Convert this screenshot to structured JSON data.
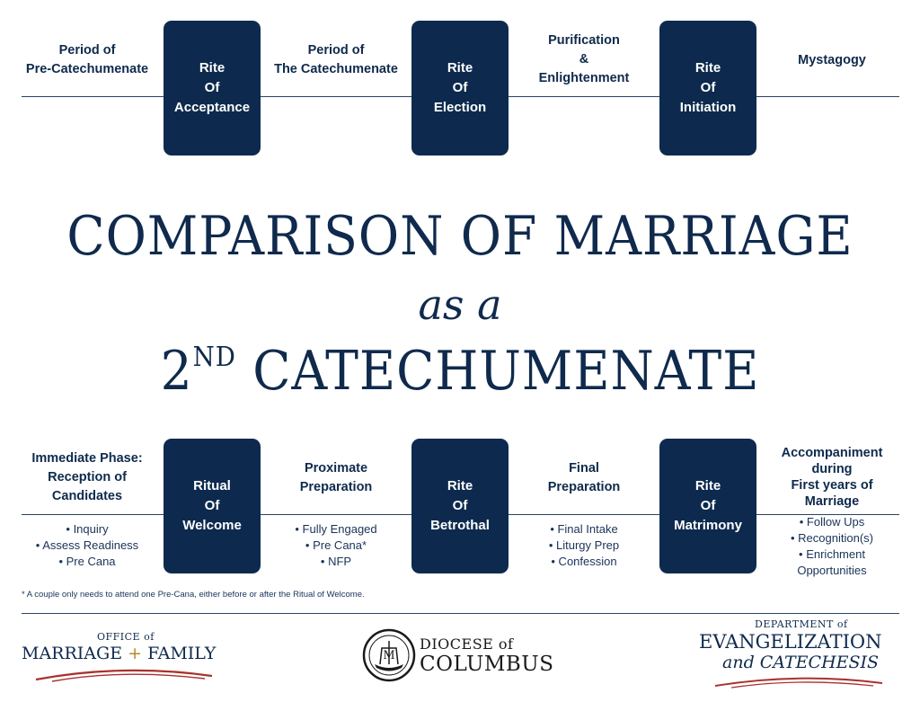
{
  "top_timeline": {
    "labels": [
      [
        "Period of",
        "Pre-Catechumenate"
      ],
      [
        "Period of",
        "The Catechumenate"
      ],
      [
        "Purification",
        "&",
        "Enlightenment"
      ],
      [
        "Mystagogy"
      ]
    ],
    "rites": [
      [
        "Rite",
        "Of",
        "Acceptance"
      ],
      [
        "Rite",
        "Of",
        "Election"
      ],
      [
        "Rite",
        "Of",
        "Initiation"
      ]
    ]
  },
  "title": {
    "line1": "COMPARISON OF MARRIAGE",
    "line2": "as a",
    "line3_num": "2",
    "line3_sup": "ND",
    "line3_rest": " CATECHUMENATE"
  },
  "bottom_timeline": {
    "labels": [
      [
        "Immediate Phase:",
        "Reception of",
        "Candidates"
      ],
      [
        "Proximate",
        "Preparation"
      ],
      [
        "Final",
        "Preparation"
      ],
      [
        "Accompaniment",
        "during",
        "First years of",
        "Marriage"
      ]
    ],
    "rites": [
      [
        "Ritual",
        "Of",
        "Welcome"
      ],
      [
        "Rite",
        "Of",
        "Betrothal"
      ],
      [
        "Rite",
        "Of",
        "Matrimony"
      ]
    ],
    "sublists": [
      [
        "• Inquiry",
        "• Assess Readiness",
        "• Pre Cana"
      ],
      [
        "• Fully Engaged",
        "• Pre Cana*",
        "• NFP"
      ],
      [
        "• Final Intake",
        "• Liturgy Prep",
        "• Confession"
      ],
      [
        "• Follow Ups",
        "• Recognition(s)",
        "• Enrichment",
        "Opportunities"
      ]
    ]
  },
  "footnote": "* A couple only needs to attend one Pre-Cana, either before or after the Ritual of Welcome.",
  "logos": {
    "office": {
      "small": "OFFICE of",
      "left": "MARRIAGE",
      "plus": "+",
      "right": "FAMILY"
    },
    "diocese": {
      "line1": "DIOCESE of",
      "line2": "COLUMBUS",
      "seal_letter": "M"
    },
    "department": {
      "line1": "DEPARTMENT of",
      "line2": "EVANGELIZATION",
      "line3": "and CATECHESIS"
    }
  },
  "colors": {
    "navy": "#0d2a4e",
    "gold": "#b8882e",
    "red_swoosh": "#a8322f"
  }
}
